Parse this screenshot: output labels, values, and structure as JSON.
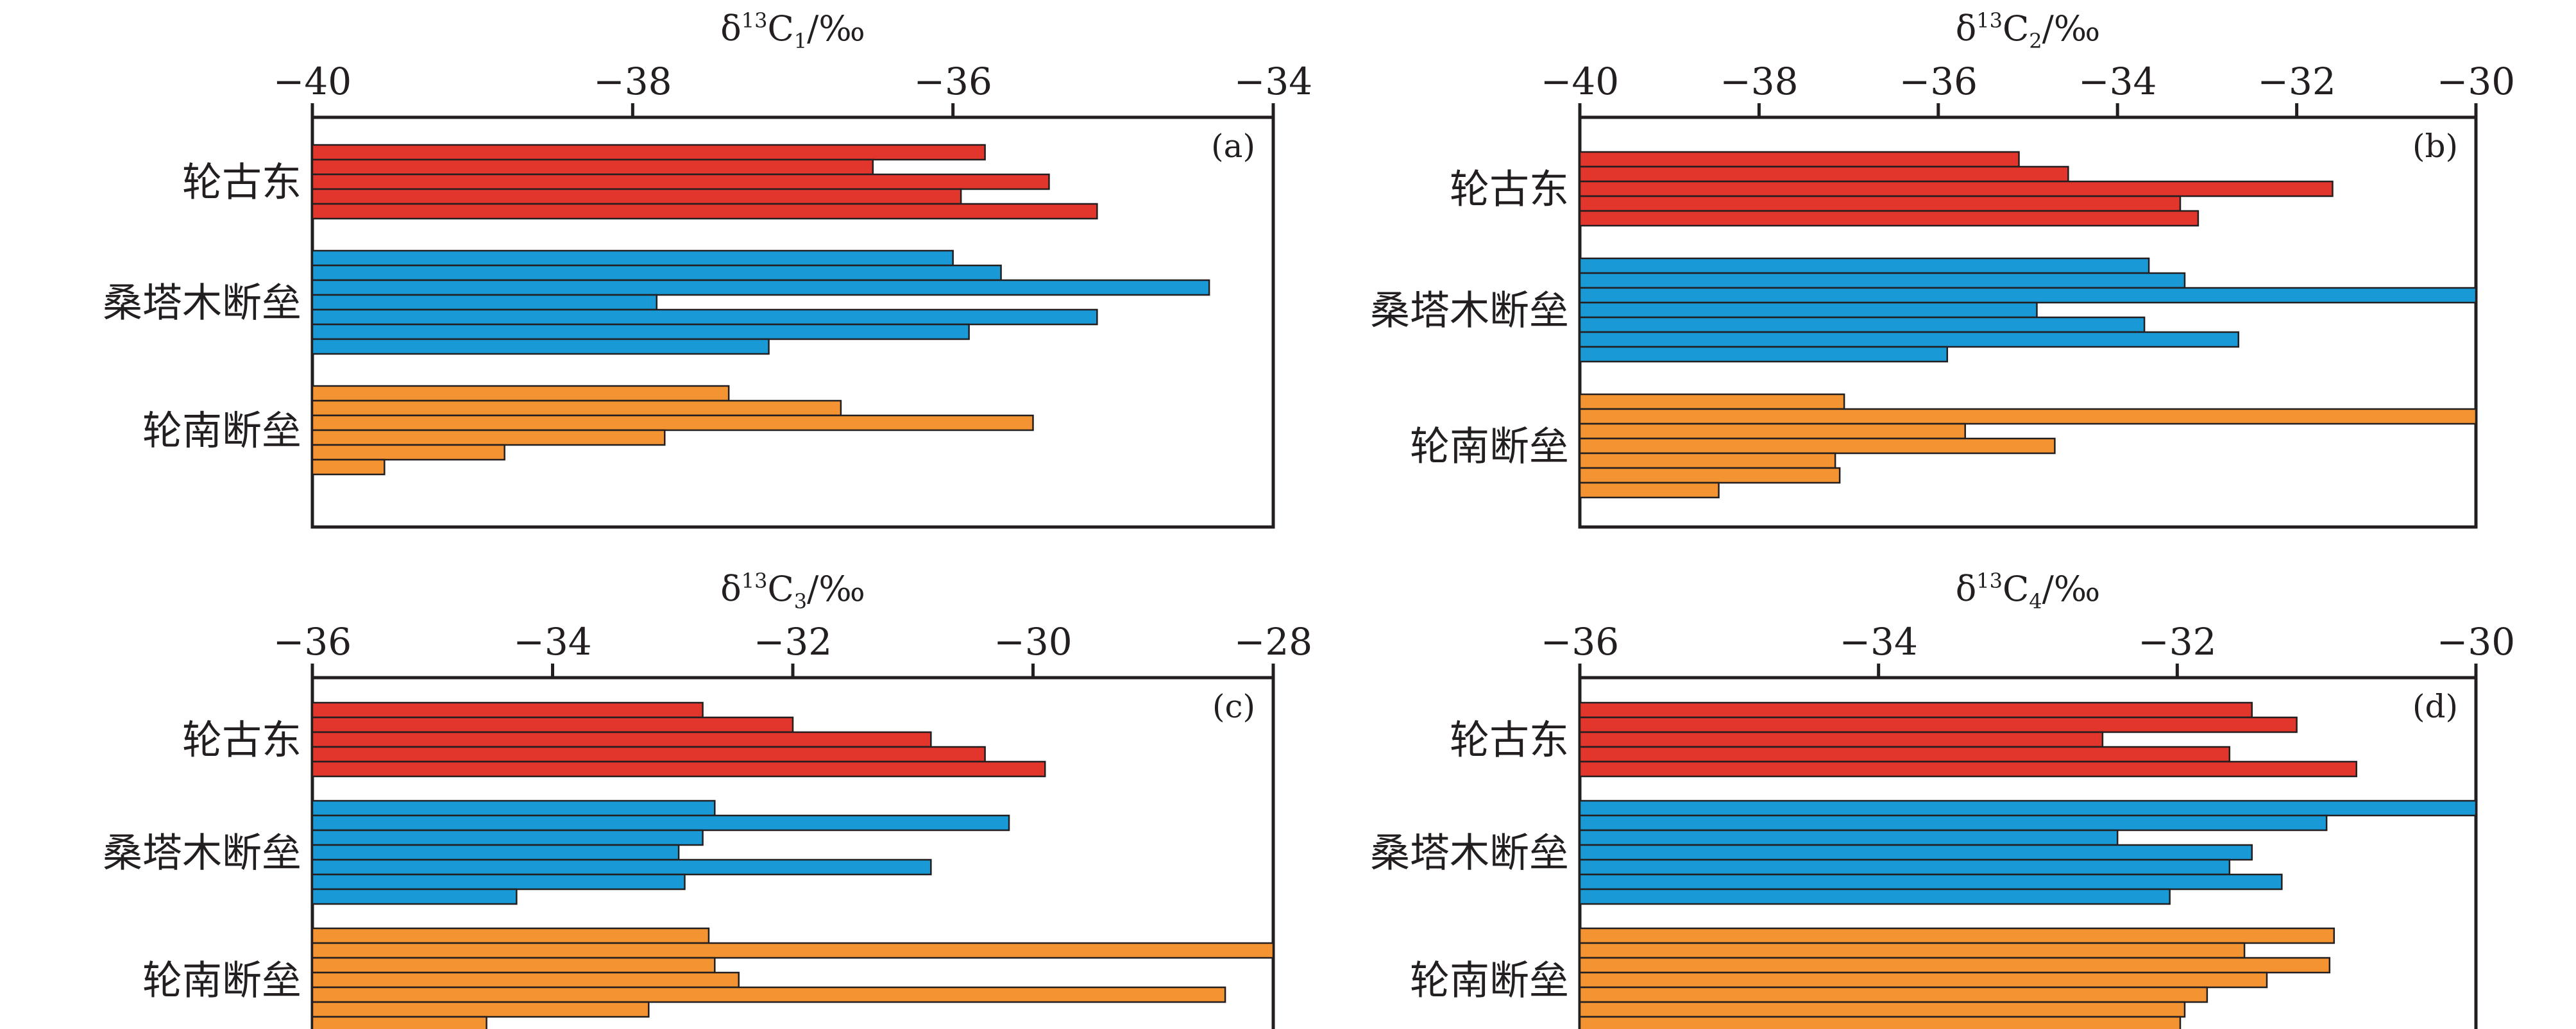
{
  "colors": {
    "轮古东": "#e2352c",
    "桑塔木断垒": "#199ad6",
    "轮南断垒": "#f39331",
    "frame": "#231f20"
  },
  "chart_data": [
    {
      "type": "bar",
      "orientation": "horizontal",
      "panel": "(a)",
      "xlabel": "δ13C1/‰",
      "xlabel_parts": {
        "base": "δ",
        "sup": "13",
        "mid": "C",
        "sub": "1",
        "tail": "/‰"
      },
      "xlim": [
        -40,
        -34
      ],
      "xticks": [
        -40,
        -38,
        -36,
        -34
      ],
      "tick_labels": [
        "−40",
        "−38",
        "−36",
        "−34"
      ],
      "axis_position": "top",
      "groups": [
        {
          "name": "轮古东",
          "values": [
            -35.8,
            -36.5,
            -35.4,
            -35.95,
            -35.1
          ]
        },
        {
          "name": "桑塔木断垒",
          "values": [
            -36.0,
            -35.7,
            -34.4,
            -37.85,
            -35.1,
            -35.9,
            -37.15
          ]
        },
        {
          "name": "轮南断垒",
          "values": [
            -37.4,
            -36.7,
            -35.5,
            -37.8,
            -38.8,
            -39.55
          ]
        }
      ]
    },
    {
      "type": "bar",
      "orientation": "horizontal",
      "panel": "(b)",
      "xlabel": "δ13C2/‰",
      "xlabel_parts": {
        "base": "δ",
        "sup": "13",
        "mid": "C",
        "sub": "2",
        "tail": "/‰"
      },
      "xlim": [
        -40,
        -30
      ],
      "xticks": [
        -40,
        -38,
        -36,
        -34,
        -32,
        -30
      ],
      "tick_labels": [
        "−40",
        "−38",
        "−36",
        "−34",
        "−32",
        "−30"
      ],
      "axis_position": "top",
      "groups": [
        {
          "name": "轮古东",
          "values": [
            -35.1,
            -34.55,
            -31.6,
            -33.3,
            -33.1
          ]
        },
        {
          "name": "桑塔木断垒",
          "values": [
            -33.65,
            -33.25,
            -30.0,
            -34.9,
            -33.7,
            -32.65,
            -35.9
          ]
        },
        {
          "name": "轮南断垒",
          "values": [
            -37.05,
            -30.0,
            -35.7,
            -34.7,
            -37.15,
            -37.1,
            -38.45
          ]
        }
      ]
    },
    {
      "type": "bar",
      "orientation": "horizontal",
      "panel": "(c)",
      "xlabel": "δ13C3/‰",
      "xlabel_parts": {
        "base": "δ",
        "sup": "13",
        "mid": "C",
        "sub": "3",
        "tail": "/‰"
      },
      "xlim": [
        -36,
        -28
      ],
      "xticks": [
        -36,
        -34,
        -32,
        -30,
        -28
      ],
      "tick_labels": [
        "−36",
        "−34",
        "−32",
        "−30",
        "−28"
      ],
      "axis_position": "top",
      "groups": [
        {
          "name": "轮古东",
          "values": [
            -32.75,
            -32.0,
            -30.85,
            -30.4,
            -29.9
          ]
        },
        {
          "name": "桑塔木断垒",
          "values": [
            -32.65,
            -30.2,
            -32.75,
            -32.95,
            -30.85,
            -32.9,
            -34.3
          ]
        },
        {
          "name": "轮南断垒",
          "values": [
            -32.7,
            -28.0,
            -32.65,
            -32.45,
            -28.4,
            -33.2,
            -34.55
          ]
        }
      ]
    },
    {
      "type": "bar",
      "orientation": "horizontal",
      "panel": "(d)",
      "xlabel": "δ13C4/‰",
      "xlabel_parts": {
        "base": "δ",
        "sup": "13",
        "mid": "C",
        "sub": "4",
        "tail": "/‰"
      },
      "xlim": [
        -36,
        -30
      ],
      "xticks": [
        -36,
        -34,
        -32,
        -30
      ],
      "tick_labels": [
        "−36",
        "−34",
        "−32",
        "−30"
      ],
      "axis_position": "top",
      "groups": [
        {
          "name": "轮古东",
          "values": [
            -31.5,
            -31.2,
            -32.5,
            -31.65,
            -30.8
          ]
        },
        {
          "name": "桑塔木断垒",
          "values": [
            -30.0,
            -31.0,
            -32.4,
            -31.5,
            -31.65,
            -31.3,
            -32.05
          ]
        },
        {
          "name": "轮南断垒",
          "values": [
            -30.95,
            -31.55,
            -30.98,
            -31.4,
            -31.8,
            -31.95,
            -31.98
          ]
        }
      ]
    }
  ]
}
